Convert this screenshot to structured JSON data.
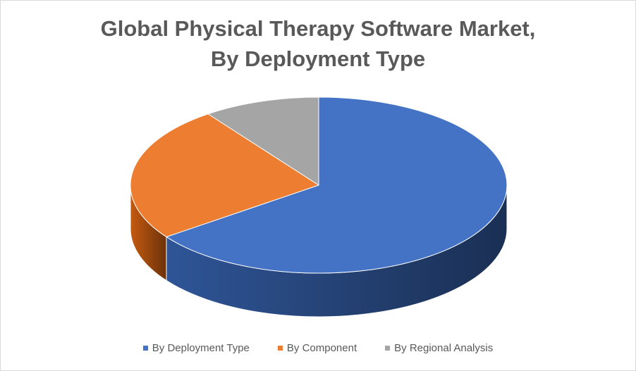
{
  "chart_data": {
    "type": "pie",
    "title": [
      "Global Physical Therapy Software Market,",
      "By Deployment Type"
    ],
    "series": [
      {
        "name": "By Deployment Type",
        "value": 65,
        "color": "#4472C4",
        "side_color": "#2F5597"
      },
      {
        "name": "By Component",
        "value": 25,
        "color": "#ED7D31",
        "side_color": "#C55A11"
      },
      {
        "name": "By Regional Analysis",
        "value": 10,
        "color": "#A5A5A5",
        "side_color": "#7F7F7F"
      }
    ],
    "style": "3d",
    "legend_position": "bottom"
  }
}
